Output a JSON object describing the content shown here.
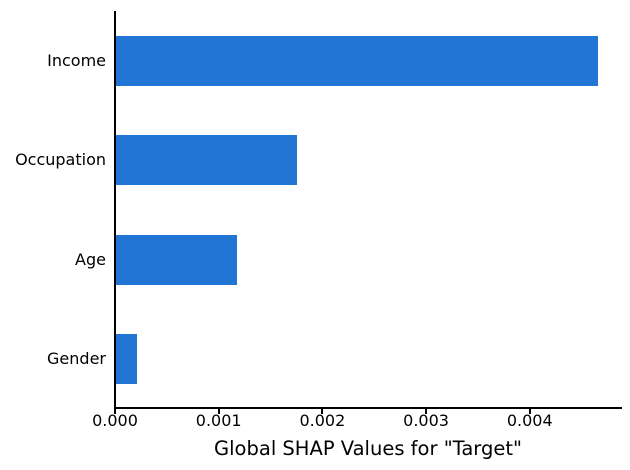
{
  "chart_data": {
    "type": "bar",
    "orientation": "horizontal",
    "title": "",
    "xlabel": "Global SHAP Values for \"Target\"",
    "ylabel": "",
    "categories": [
      "Income",
      "Occupation",
      "Age",
      "Gender"
    ],
    "values": [
      0.00465,
      0.00175,
      0.00117,
      0.0002
    ],
    "xlim": [
      0,
      0.00488
    ],
    "xticks": [
      0,
      0.001,
      0.002,
      0.003,
      0.004
    ],
    "xtick_labels": [
      "0.000",
      "0.001",
      "0.002",
      "0.003",
      "0.004"
    ],
    "bar_color": "#2274d5",
    "axis_color": "#000000",
    "grid": "off",
    "legend": "none"
  }
}
